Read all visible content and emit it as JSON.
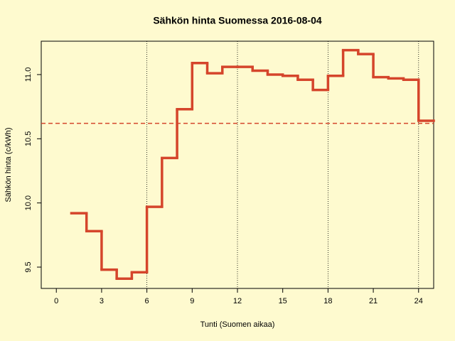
{
  "chart_data": {
    "type": "step",
    "title": "Sähkön hinta Suomessa 2016-08-04",
    "x_label": "Tunti (Suomen aikaa)",
    "y_label": "Sähkön hinta (c/kWh)",
    "x": [
      1,
      2,
      3,
      4,
      5,
      6,
      7,
      8,
      9,
      10,
      11,
      12,
      13,
      14,
      15,
      16,
      17,
      18,
      19,
      20,
      21,
      22,
      23,
      24
    ],
    "series": [
      {
        "color": "#d5452b",
        "values": [
          9.92,
          9.78,
          9.48,
          9.41,
          9.46,
          9.97,
          10.35,
          10.73,
          11.09,
          11.01,
          11.06,
          11.06,
          11.03,
          11.0,
          10.99,
          10.96,
          10.88,
          10.99,
          11.19,
          11.16,
          10.98,
          10.97,
          10.96,
          10.64
        ]
      }
    ],
    "hline": {
      "value": 10.62,
      "color": "#d5452b"
    },
    "vlines": [
      6,
      12,
      18,
      24
    ],
    "xlim": [
      -1,
      25
    ],
    "ylim": [
      9.334,
      11.26
    ],
    "xticks": [
      0,
      3,
      6,
      9,
      12,
      15,
      18,
      21,
      24
    ],
    "yticks": [
      9.5,
      {
        "value": 10,
        "label": "10.0"
      },
      10.5,
      {
        "value": 11,
        "label": "11.0"
      }
    ]
  }
}
